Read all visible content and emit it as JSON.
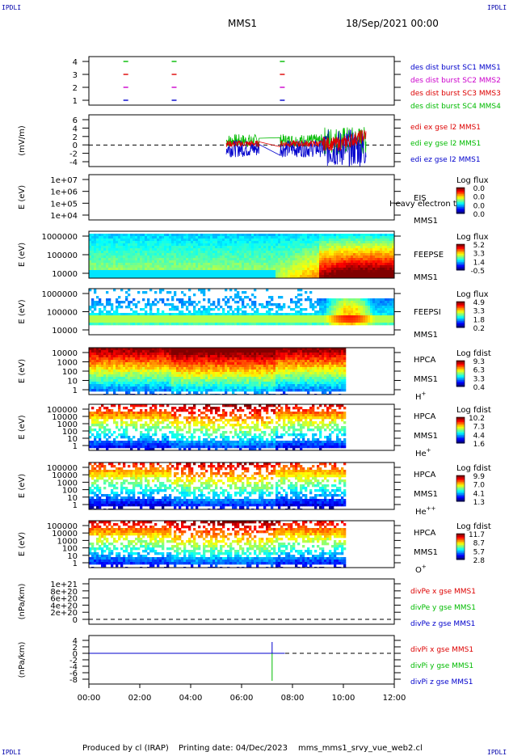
{
  "corners": {
    "tl": "IPDLI",
    "tr": "IPDLI",
    "bl": "IPDLI",
    "br": "IPDLI"
  },
  "header": {
    "spacecraft": "MMS1",
    "date": "18/Sep/2021 00:00"
  },
  "footer": {
    "produced": "Produced by cl (IRAP)",
    "printing": "Printing date: 04/Dec/2023",
    "file": "mms_mms1_srvy_vue_web2.cl"
  },
  "chart_data": {
    "type": "multi-panel",
    "x_range_hours": [
      0,
      12
    ],
    "x_ticks": [
      "00:00",
      "02:00",
      "04:00",
      "06:00",
      "08:00",
      "10:00",
      "12:00"
    ],
    "panels": [
      {
        "type": "scatter",
        "ylabel": "",
        "yticks": [
          "4",
          "3",
          "2",
          "1"
        ],
        "legend": [
          {
            "label": "des dist burst SC1 MMS1",
            "color": "#0000cc"
          },
          {
            "label": "des dist burst SC2 MMS2",
            "color": "#cc00cc"
          },
          {
            "label": "des dist burst SC3 MMS3",
            "color": "#dd0000"
          },
          {
            "label": "des dist burst SC4 MMS4",
            "color": "#00bb00"
          }
        ],
        "marks": [
          {
            "t": 1.45,
            "level": 4,
            "color": "#00bb00"
          },
          {
            "t": 3.35,
            "level": 4,
            "color": "#00bb00"
          },
          {
            "t": 7.6,
            "level": 4,
            "color": "#00bb00"
          },
          {
            "t": 1.45,
            "level": 3,
            "color": "#dd0000"
          },
          {
            "t": 3.35,
            "level": 3,
            "color": "#dd0000"
          },
          {
            "t": 7.6,
            "level": 3,
            "color": "#dd0000"
          },
          {
            "t": 1.45,
            "level": 2,
            "color": "#cc00cc"
          },
          {
            "t": 3.35,
            "level": 2,
            "color": "#cc00cc"
          },
          {
            "t": 7.6,
            "level": 2,
            "color": "#cc00cc"
          },
          {
            "t": 1.45,
            "level": 1,
            "color": "#0000cc"
          },
          {
            "t": 3.35,
            "level": 1,
            "color": "#0000cc"
          },
          {
            "t": 7.6,
            "level": 1,
            "color": "#0000cc"
          }
        ]
      },
      {
        "type": "line",
        "ylabel": "(mV/m)",
        "yticks": [
          "6",
          "4",
          "2",
          "0",
          "-2",
          "-4"
        ],
        "ylim": [
          -5,
          7
        ],
        "legend": [
          {
            "label": "edi ex gse l2 MMS1",
            "color": "#dd0000"
          },
          {
            "label": "edi ey gse l2 MMS1",
            "color": "#00bb00"
          },
          {
            "label": "edi ez gse l2 MMS1",
            "color": "#0000cc"
          }
        ],
        "active_range_hours": [
          5.4,
          10.9
        ]
      },
      {
        "type": "heatmap",
        "ylabel": "E (eV)",
        "yticks": [
          "1e+07",
          "1e+06",
          "1e+05",
          "1e+04"
        ],
        "empty": true,
        "labels": [
          "EIS",
          "MMS1"
        ],
        "overflow_text": "Heavy electron to",
        "cbar_title": "Log flux",
        "cbar_ticks": [
          "0.0",
          "0.0",
          "0.0",
          "0.0"
        ]
      },
      {
        "type": "heatmap",
        "ylabel": "E (eV)",
        "yticks": [
          "1000000",
          "100000",
          "10000"
        ],
        "labels": [
          "FEEPSE",
          "MMS1"
        ],
        "cbar_title": "Log flux",
        "cbar_ticks": [
          "5.2",
          "3.3",
          "1.4",
          "-0.5"
        ]
      },
      {
        "type": "heatmap",
        "ylabel": "E (eV)",
        "yticks": [
          "1000000",
          "100000",
          "10000"
        ],
        "labels": [
          "FEEPSI",
          "MMS1"
        ],
        "cbar_title": "Log flux",
        "cbar_ticks": [
          "4.9",
          "3.3",
          "1.8",
          "0.2"
        ]
      },
      {
        "type": "heatmap",
        "ylabel": "E (eV)",
        "yticks": [
          "10000",
          "1000",
          "100",
          "10",
          "1"
        ],
        "labels": [
          "HPCA",
          "MMS1"
        ],
        "species": "H",
        "charge": "+",
        "cbar_title": "Log fdist",
        "cbar_ticks": [
          "9.3",
          "6.3",
          "3.3",
          "0.4"
        ]
      },
      {
        "type": "heatmap",
        "ylabel": "E (eV)",
        "yticks": [
          "100000",
          "10000",
          "1000",
          "100",
          "10",
          "1"
        ],
        "labels": [
          "HPCA",
          "MMS1"
        ],
        "species": "He",
        "charge": "+",
        "cbar_title": "Log fdist",
        "cbar_ticks": [
          "10.2",
          "7.3",
          "4.4",
          "1.6"
        ]
      },
      {
        "type": "heatmap",
        "ylabel": "E (eV)",
        "yticks": [
          "100000",
          "10000",
          "1000",
          "100",
          "10",
          "1"
        ],
        "labels": [
          "HPCA",
          "MMS1"
        ],
        "species": "He",
        "charge": "++",
        "cbar_title": "Log fdist",
        "cbar_ticks": [
          "9.9",
          "7.0",
          "4.1",
          "1.3"
        ]
      },
      {
        "type": "heatmap",
        "ylabel": "E (eV)",
        "yticks": [
          "100000",
          "10000",
          "1000",
          "100",
          "10",
          "1"
        ],
        "labels": [
          "HPCA",
          "MMS1"
        ],
        "species": "O",
        "charge": "+",
        "cbar_title": "Log fdist",
        "cbar_ticks": [
          "11.7",
          "8.7",
          "5.7",
          "2.8"
        ]
      },
      {
        "type": "line",
        "ylabel": "(nPa/km)",
        "yticks": [
          "1e+21",
          "8e+20",
          "6e+20",
          "4e+20",
          "2e+20",
          "0"
        ],
        "legend": [
          {
            "label": "divPe x gse MMS1",
            "color": "#dd0000"
          },
          {
            "label": "divPe y gse MMS1",
            "color": "#00bb00"
          },
          {
            "label": "divPe z gse MMS1",
            "color": "#0000cc"
          }
        ]
      },
      {
        "type": "line",
        "ylabel": "(nPa/km)",
        "yticks": [
          "4",
          "2",
          "0",
          "-2",
          "-4",
          "-6",
          "-8"
        ],
        "legend": [
          {
            "label": "divPi x gse MMS1",
            "color": "#dd0000"
          },
          {
            "label": "divPi y gse MMS1",
            "color": "#00bb00"
          },
          {
            "label": "divPi z gse MMS1",
            "color": "#0000cc"
          }
        ],
        "spike_hours": 7.2
      }
    ]
  }
}
